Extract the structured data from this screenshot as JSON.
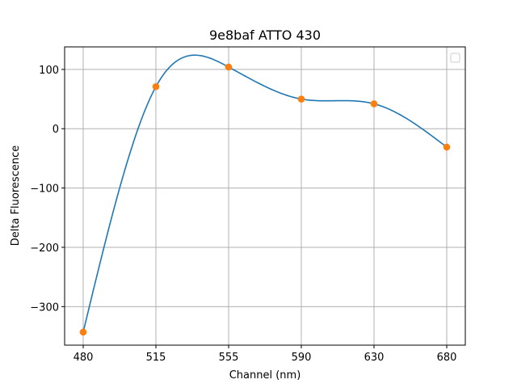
{
  "chart_data": {
    "type": "line",
    "title": "9e8baf ATTO 430",
    "xlabel": "Channel (nm)",
    "ylabel": "Delta Fluorescence",
    "categories": [
      "480",
      "515",
      "555",
      "590",
      "630",
      "680"
    ],
    "series": [
      {
        "values": [
          -343,
          71,
          104,
          50,
          42,
          -31
        ]
      }
    ],
    "ylim": [
      -365,
      138
    ],
    "yticks": [
      100,
      0,
      -100,
      -200,
      -300
    ],
    "ytick_labels": [
      "100",
      "0",
      "−100",
      "−200",
      "−300"
    ],
    "grid": true,
    "legend": "top-right",
    "colors": {
      "line": "#1f77b4",
      "points": "#ff7f0e"
    }
  }
}
